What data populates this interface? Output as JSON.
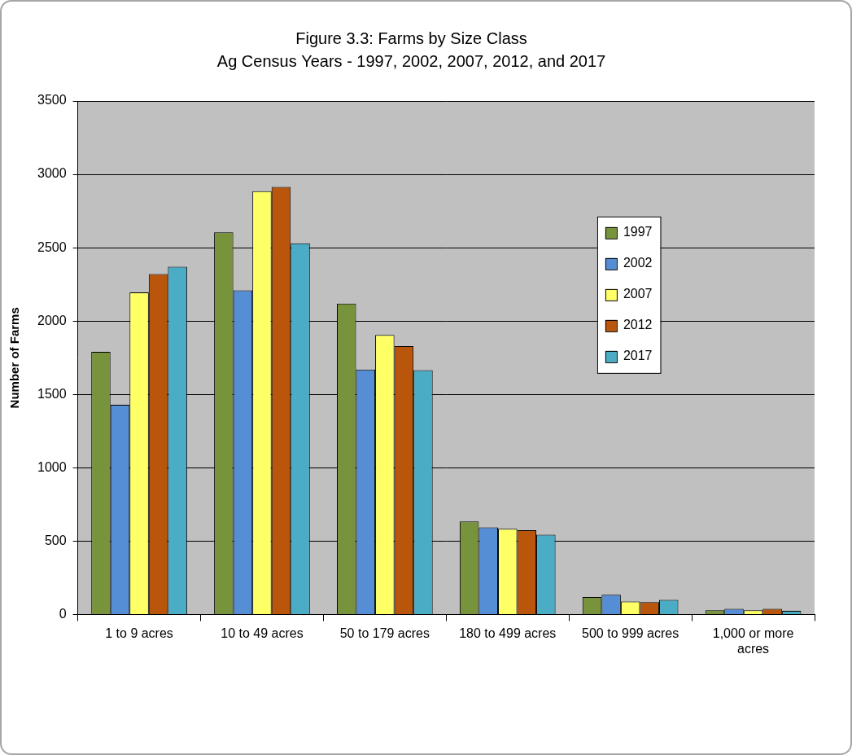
{
  "chart_data": {
    "type": "bar",
    "title": "Figure 3.3: Farms by Size Class",
    "subtitle": "Ag Census Years - 1997, 2002, 2007, 2012, and 2017",
    "y_label": "Number of Farms",
    "categories": [
      "1 to 9 acres",
      "10 to 49 acres",
      "50 to 179 acres",
      "180 to 499 acres",
      "500 to 999 acres",
      "1,000 or more acres"
    ],
    "series": [
      {
        "name": "1997",
        "color": "#77933c",
        "values": [
          1790,
          2605,
          2120,
          635,
          120,
          30
        ]
      },
      {
        "name": "2002",
        "color": "#558ed5",
        "values": [
          1430,
          2210,
          1670,
          595,
          135,
          40
        ]
      },
      {
        "name": "2007",
        "color": "#ffff66",
        "values": [
          2195,
          2885,
          1905,
          585,
          90,
          30
        ]
      },
      {
        "name": "2012",
        "color": "#b9560c",
        "values": [
          2320,
          2915,
          1830,
          575,
          85,
          40
        ]
      },
      {
        "name": "2017",
        "color": "#4bacc6",
        "values": [
          2370,
          2530,
          1665,
          545,
          100,
          25
        ]
      }
    ],
    "ylim": [
      0,
      3500
    ],
    "yticks": [
      0,
      500,
      1000,
      1500,
      2000,
      2500,
      3000,
      3500
    ],
    "grid": true,
    "legend": "right"
  }
}
